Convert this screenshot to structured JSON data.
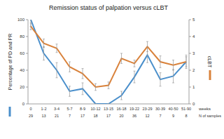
{
  "chart_data": {
    "type": "line",
    "title": "Remission status of palpation versus cLBT",
    "categories": [
      "0",
      "1-2",
      "3-4",
      "5-7",
      "8-9",
      "10-12",
      "13-15",
      "16-18",
      "19-22",
      "23-29",
      "30-39",
      "40-50",
      "51-90"
    ],
    "x_label": "weeks",
    "n_label": "N of samples",
    "n_samples": [
      29,
      13,
      21,
      7,
      17,
      18,
      17,
      20,
      36,
      12,
      7,
      9,
      8
    ],
    "series": [
      {
        "name": "Percentage of PD and PR",
        "color": "#4a8fcb",
        "values": [
          100,
          60,
          40,
          15,
          18,
          0,
          0,
          10,
          32,
          58,
          29,
          33,
          50
        ],
        "errors": [
          8,
          8,
          9,
          6,
          7,
          0,
          0,
          5,
          7,
          9,
          8,
          8,
          8
        ]
      },
      {
        "name": "cLBT",
        "color": "#d9823b",
        "axis": "y2",
        "values": [
          4.6,
          3.6,
          3.3,
          2.2,
          1.8,
          1.0,
          1.1,
          2.7,
          2.4,
          3.4,
          2.5,
          2.3,
          2.5
        ],
        "errors": [
          0.2,
          0.25,
          0.25,
          0.3,
          0.3,
          0.2,
          0.2,
          0.3,
          0.2,
          0.3,
          0.35,
          0.3,
          0.3
        ]
      }
    ],
    "ylim": [
      0,
      100
    ],
    "yticks": [
      0,
      20,
      40,
      60,
      80,
      100
    ],
    "y2lim": [
      0,
      5
    ],
    "y2ticks": [
      0,
      1,
      2,
      3,
      4,
      5
    ],
    "grid": false
  }
}
